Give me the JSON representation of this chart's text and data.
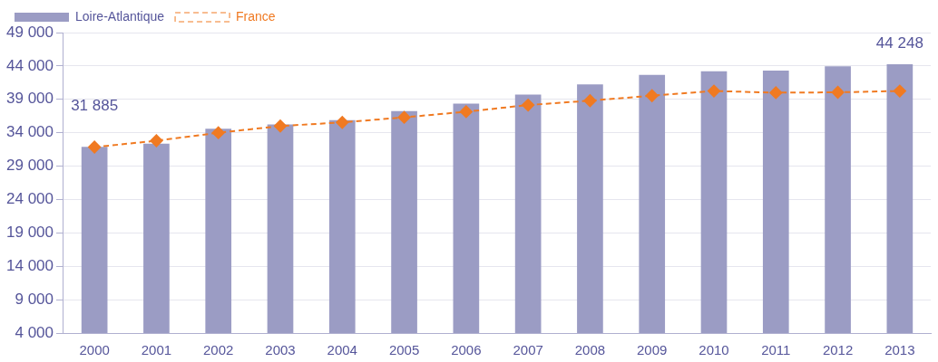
{
  "chart_data": {
    "type": "bar",
    "categories": [
      "2000",
      "2001",
      "2002",
      "2003",
      "2004",
      "2005",
      "2006",
      "2007",
      "2008",
      "2009",
      "2010",
      "2011",
      "2012",
      "2013"
    ],
    "series": [
      {
        "name": "Loire-Atlantique",
        "color": "#9b9cc4",
        "values": [
          31885,
          32350,
          34600,
          35250,
          35900,
          37250,
          38350,
          39700,
          41250,
          42650,
          43200,
          43300,
          43950,
          44248
        ],
        "value_labels": [
          "31 885",
          null,
          null,
          null,
          null,
          null,
          null,
          null,
          null,
          null,
          null,
          null,
          null,
          "44 248"
        ]
      },
      {
        "name": "France",
        "type": "line",
        "color": "#f07a22",
        "marker": "diamond",
        "line_style": "dashed",
        "values": [
          31850,
          32800,
          34000,
          35000,
          35550,
          36300,
          37150,
          38150,
          38800,
          39550,
          40250,
          40000,
          40050,
          40250
        ]
      }
    ],
    "ylim": [
      4000,
      49000
    ],
    "yticks": [
      {
        "value": 4000,
        "label": "4 000"
      },
      {
        "value": 9000,
        "label": "9 000"
      },
      {
        "value": 14000,
        "label": "14 000"
      },
      {
        "value": 19000,
        "label": "19 000"
      },
      {
        "value": 24000,
        "label": "24 000"
      },
      {
        "value": 29000,
        "label": "29 000"
      },
      {
        "value": 34000,
        "label": "34 000"
      },
      {
        "value": 39000,
        "label": "39 000"
      },
      {
        "value": 44000,
        "label": "44 000"
      },
      {
        "value": 49000,
        "label": "49 000"
      }
    ],
    "grid": "y",
    "legend": "top"
  }
}
